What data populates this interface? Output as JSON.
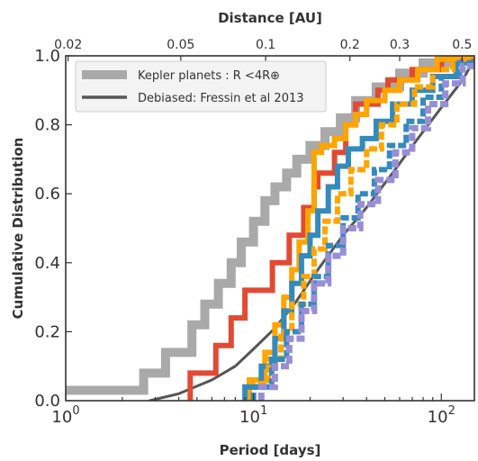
{
  "chart_data": {
    "type": "line",
    "xlabel": "Period [days]",
    "ylabel": "Cumulative Distribution",
    "top_axis_label": "Distance [AU]",
    "x_scale": "log",
    "xlim": [
      1,
      150
    ],
    "ylim": [
      0,
      1
    ],
    "grid": false,
    "legend_position": "top-left",
    "x_ticks": [
      {
        "value": 1,
        "base": "10",
        "exp": "0"
      },
      {
        "value": 10,
        "base": "10",
        "exp": "1"
      },
      {
        "value": 100,
        "base": "10",
        "exp": "2"
      }
    ],
    "y_ticks": [
      "0.0",
      "0.2",
      "0.4",
      "0.6",
      "0.8",
      "1.0"
    ],
    "top_ticks": [
      {
        "label": "0.02",
        "period": 1.03
      },
      {
        "label": "0.05",
        "period": 4.1
      },
      {
        "label": "0.1",
        "period": 11.6
      },
      {
        "label": "0.2",
        "period": 32.6
      },
      {
        "label": "0.3",
        "period": 60
      },
      {
        "label": "0.5",
        "period": 129
      }
    ],
    "legend": [
      {
        "name": "Kepler planets : R <4R⊕",
        "series_index": 0
      },
      {
        "name": "Debiased: Fressin et al 2013",
        "series_index": 1
      }
    ],
    "series": [
      {
        "name": "Kepler planets : R <4R⊕",
        "color": "#a9a9a9",
        "style": "step",
        "width": 10,
        "x": [
          1,
          2.6,
          2.6,
          3.4,
          3.4,
          4.7,
          4.7,
          5.5,
          5.5,
          6.5,
          6.5,
          7.6,
          7.6,
          8.6,
          8.6,
          10,
          10,
          11.5,
          11.5,
          13,
          13,
          15,
          15,
          17,
          17,
          20,
          20,
          24,
          24,
          29,
          29,
          35,
          35,
          45,
          45,
          60,
          60,
          80,
          80,
          110,
          110,
          150
        ],
        "y": [
          0.03,
          0.03,
          0.08,
          0.08,
          0.14,
          0.14,
          0.22,
          0.22,
          0.28,
          0.28,
          0.34,
          0.34,
          0.4,
          0.4,
          0.46,
          0.46,
          0.52,
          0.52,
          0.58,
          0.58,
          0.62,
          0.62,
          0.66,
          0.66,
          0.7,
          0.7,
          0.74,
          0.74,
          0.78,
          0.78,
          0.82,
          0.82,
          0.87,
          0.87,
          0.91,
          0.91,
          0.95,
          0.95,
          0.98,
          0.98,
          1.0,
          1.0
        ]
      },
      {
        "name": "Debiased: Fressin et al 2013",
        "color": "#555555",
        "style": "smooth",
        "width": 3,
        "x": [
          2.8,
          4,
          6,
          8,
          10,
          13,
          17,
          22,
          30,
          40,
          55,
          75,
          100,
          130,
          150
        ],
        "y": [
          0.0,
          0.02,
          0.06,
          0.1,
          0.15,
          0.21,
          0.29,
          0.38,
          0.48,
          0.56,
          0.66,
          0.76,
          0.85,
          0.93,
          0.99
        ]
      },
      {
        "color": "#e24a33",
        "style": "step",
        "width": 6,
        "x": [
          4.6,
          4.6,
          6.3,
          6.3,
          7.6,
          7.6,
          9.0,
          9.0,
          12.6,
          12.6,
          15.5,
          15.5,
          18.5,
          18.5,
          21,
          21,
          22,
          22,
          27,
          27,
          31,
          31,
          35,
          35,
          46,
          46,
          52,
          52,
          70,
          70,
          100,
          100,
          150
        ],
        "y": [
          0.0,
          0.08,
          0.08,
          0.16,
          0.16,
          0.24,
          0.24,
          0.32,
          0.32,
          0.4,
          0.4,
          0.48,
          0.48,
          0.56,
          0.56,
          0.62,
          0.62,
          0.66,
          0.66,
          0.72,
          0.72,
          0.8,
          0.8,
          0.86,
          0.86,
          0.9,
          0.9,
          0.93,
          0.93,
          0.96,
          0.96,
          0.99,
          0.99
        ]
      },
      {
        "color": "#ffa500",
        "style": "step",
        "width": 6,
        "x": [
          9.5,
          9.5,
          11.5,
          11.5,
          13,
          13,
          14.5,
          14.5,
          16,
          16,
          17.5,
          17.5,
          19.5,
          19.5,
          21,
          21,
          23,
          23,
          27,
          27,
          31,
          31,
          35,
          35,
          40,
          40,
          50,
          50,
          60,
          60,
          75,
          75,
          95,
          95,
          120,
          120,
          150
        ],
        "y": [
          0.0,
          0.06,
          0.06,
          0.14,
          0.14,
          0.22,
          0.22,
          0.3,
          0.3,
          0.38,
          0.38,
          0.46,
          0.46,
          0.55,
          0.55,
          0.72,
          0.72,
          0.74,
          0.74,
          0.76,
          0.76,
          0.8,
          0.8,
          0.83,
          0.83,
          0.87,
          0.87,
          0.9,
          0.9,
          0.93,
          0.93,
          0.96,
          0.96,
          0.99,
          0.99,
          1.0,
          1.0
        ]
      },
      {
        "color": "#348abd",
        "style": "step",
        "width": 6,
        "x": [
          9.0,
          9.0,
          11,
          11,
          13,
          13,
          14.5,
          14.5,
          16,
          16,
          18,
          18,
          20,
          20,
          22,
          22,
          25,
          25,
          28,
          28,
          32,
          32,
          38,
          38,
          45,
          45,
          55,
          55,
          70,
          70,
          90,
          90,
          120,
          120,
          150
        ],
        "y": [
          0.0,
          0.04,
          0.04,
          0.1,
          0.1,
          0.18,
          0.18,
          0.26,
          0.26,
          0.34,
          0.34,
          0.42,
          0.42,
          0.48,
          0.48,
          0.55,
          0.55,
          0.62,
          0.62,
          0.68,
          0.68,
          0.73,
          0.73,
          0.76,
          0.76,
          0.81,
          0.81,
          0.86,
          0.86,
          0.9,
          0.9,
          0.94,
          0.94,
          0.98,
          0.98
        ]
      },
      {
        "color": "#ffa500",
        "style": "dashed-step",
        "width": 6,
        "x": [
          10,
          10,
          12,
          12,
          14,
          14,
          16,
          16,
          18.5,
          18.5,
          21,
          21,
          24,
          24,
          28,
          28,
          33,
          33,
          40,
          40,
          48,
          48,
          58,
          58,
          72,
          72,
          90,
          90,
          115,
          115,
          150
        ],
        "y": [
          0.0,
          0.05,
          0.05,
          0.12,
          0.12,
          0.2,
          0.2,
          0.28,
          0.28,
          0.36,
          0.36,
          0.44,
          0.44,
          0.52,
          0.52,
          0.6,
          0.6,
          0.67,
          0.67,
          0.73,
          0.73,
          0.8,
          0.8,
          0.86,
          0.86,
          0.91,
          0.91,
          0.96,
          0.96,
          0.99,
          0.99
        ]
      },
      {
        "color": "#348abd",
        "style": "dashed-step",
        "width": 6,
        "x": [
          10,
          10,
          12.5,
          12.5,
          15,
          15,
          18,
          18,
          21,
          21,
          25,
          25,
          30,
          30,
          36,
          36,
          44,
          44,
          53,
          53,
          65,
          65,
          80,
          80,
          100,
          100,
          125,
          125,
          150
        ],
        "y": [
          0.0,
          0.04,
          0.04,
          0.12,
          0.12,
          0.2,
          0.2,
          0.28,
          0.28,
          0.36,
          0.36,
          0.45,
          0.45,
          0.53,
          0.53,
          0.6,
          0.6,
          0.67,
          0.67,
          0.74,
          0.74,
          0.81,
          0.81,
          0.88,
          0.88,
          0.94,
          0.94,
          0.98,
          0.98
        ]
      },
      {
        "color": "#988ed5",
        "style": "dashed-step",
        "width": 7,
        "x": [
          11,
          11,
          13,
          13,
          15.5,
          15.5,
          18,
          18,
          21,
          21,
          25,
          25,
          30,
          30,
          37,
          37,
          46,
          46,
          57,
          57,
          70,
          70,
          85,
          85,
          105,
          105,
          130,
          130,
          150
        ],
        "y": [
          0.0,
          0.04,
          0.04,
          0.1,
          0.1,
          0.18,
          0.18,
          0.26,
          0.26,
          0.34,
          0.34,
          0.42,
          0.42,
          0.5,
          0.5,
          0.57,
          0.57,
          0.64,
          0.64,
          0.72,
          0.72,
          0.79,
          0.79,
          0.86,
          0.86,
          0.92,
          0.92,
          0.97,
          0.97
        ]
      }
    ]
  }
}
